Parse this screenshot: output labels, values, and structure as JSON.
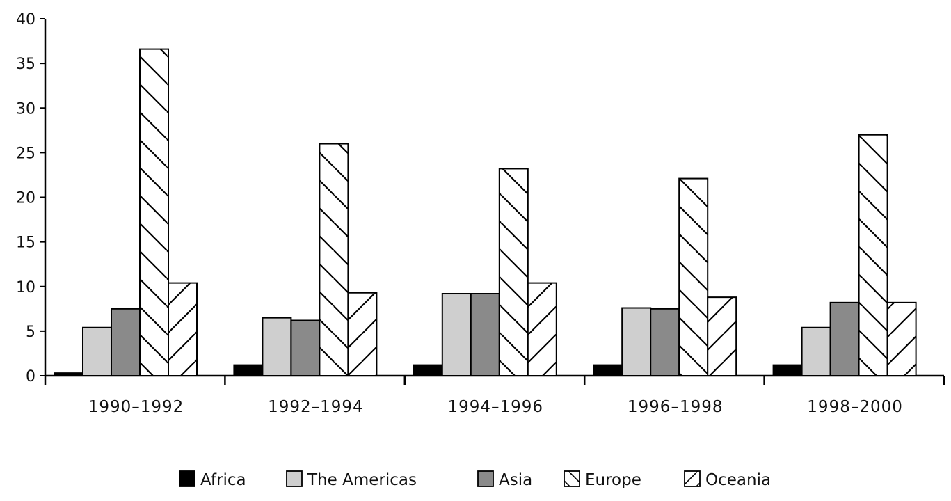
{
  "chart_data": {
    "type": "bar",
    "title": "",
    "xlabel": "",
    "ylabel": "",
    "ylim": [
      0,
      40
    ],
    "yticks": [
      0,
      5,
      10,
      15,
      20,
      25,
      30,
      35,
      40
    ],
    "grid": false,
    "legend_position": "bottom",
    "categories": [
      "1990–1992",
      "1992–1994",
      "1994–1996",
      "1996–1998",
      "1998–2000"
    ],
    "series": [
      {
        "name": "Africa",
        "values": [
          0.3,
          1.2,
          1.2,
          1.2,
          1.2
        ],
        "fill": "#000000",
        "pattern": "solid"
      },
      {
        "name": "The Americas",
        "values": [
          5.4,
          6.5,
          9.2,
          7.6,
          5.4
        ],
        "fill": "#cfcfcf",
        "pattern": "solid"
      },
      {
        "name": "Asia",
        "values": [
          7.5,
          6.2,
          9.2,
          7.5,
          8.2
        ],
        "fill": "#8a8a8a",
        "pattern": "solid"
      },
      {
        "name": "Europe",
        "values": [
          36.6,
          26.0,
          23.2,
          22.1,
          27.0
        ],
        "fill": "#ffffff",
        "pattern": "backslash"
      },
      {
        "name": "Oceania",
        "values": [
          10.4,
          9.3,
          10.4,
          8.8,
          8.2
        ],
        "fill": "#ffffff",
        "pattern": "slash"
      }
    ]
  }
}
